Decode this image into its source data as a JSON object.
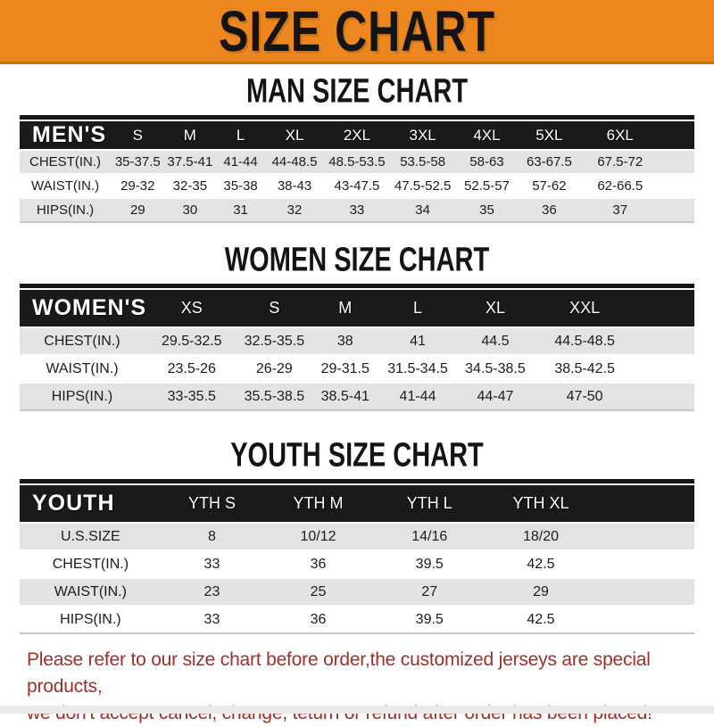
{
  "colors": {
    "banner_bg": "#EC861E",
    "banner_edge": "#C9700F",
    "header_bar": "#1A1A1A",
    "row_stripe": "#E3E3E3",
    "heading_text": "#141414",
    "footer_red": "#A32E28"
  },
  "banner": {
    "title": "SIZE CHART"
  },
  "sections": [
    {
      "heading": "MAN SIZE CHART",
      "table": {
        "header": [
          "MEN'S",
          "S",
          "M",
          "L",
          "XL",
          "2XL",
          "3XL",
          "4XL",
          "5XL",
          "6XL"
        ],
        "rows": [
          [
            "CHEST(IN.)",
            "35-37.5",
            "37.5-41",
            "41-44",
            "44-48.5",
            "48.5-53.5",
            "53.5-58",
            "58-63",
            "63-67.5",
            "67.5-72"
          ],
          [
            "WAIST(IN.)",
            "29-32",
            "32-35",
            "35-38",
            "38-43",
            "43-47.5",
            "47.5-52.5",
            "52.5-57",
            "57-62",
            "62-66.5"
          ],
          [
            "HIPS(IN.)",
            "29",
            "30",
            "31",
            "32",
            "33",
            "34",
            "35",
            "36",
            "37"
          ]
        ]
      }
    },
    {
      "heading": "WOMEN SIZE CHART",
      "table": {
        "header": [
          "WOMEN'S",
          "XS",
          "S",
          "M",
          "L",
          "XL",
          "XXL"
        ],
        "rows": [
          [
            "CHEST(IN.)",
            "29.5-32.5",
            "32.5-35.5",
            "38",
            "41",
            "44.5",
            "44.5-48.5"
          ],
          [
            "WAIST(IN.)",
            "23.5-26",
            "26-29",
            "29-31.5",
            "31.5-34.5",
            "34.5-38.5",
            "38.5-42.5"
          ],
          [
            "HIPS(IN.)",
            "33-35.5",
            "35.5-38.5",
            "38.5-41",
            "41-44",
            "44-47",
            "47-50"
          ]
        ]
      }
    },
    {
      "heading": "YOUTH SIZE CHART",
      "table": {
        "header": [
          "YOUTH",
          "YTH S",
          "YTH M",
          "YTH L",
          "YTH XL"
        ],
        "rows": [
          [
            "U.S.SIZE",
            "8",
            "10/12",
            "14/16",
            "18/20"
          ],
          [
            "CHEST(IN.)",
            "33",
            "36",
            "39.5",
            "42.5"
          ],
          [
            "WAIST(IN.)",
            "23",
            "25",
            "27",
            "29"
          ],
          [
            "HIPS(IN.)",
            "33",
            "36",
            "39.5",
            "42.5"
          ]
        ]
      }
    }
  ],
  "footer": {
    "line1": "Please refer to our size chart before order,the customized jerseys are special products,",
    "line2": "we don't accept cancel, change, teturn or refund after order has been placed!"
  }
}
